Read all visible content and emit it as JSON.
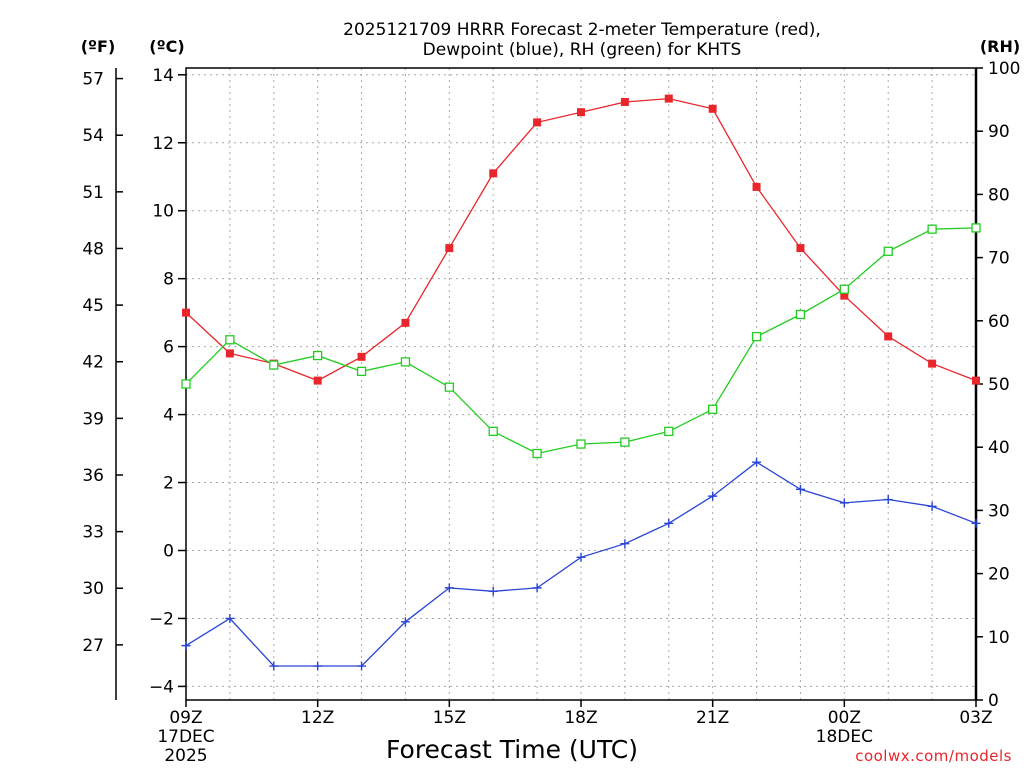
{
  "chart_data": {
    "type": "line",
    "title_line1": "2025121709 HRRR Forecast 2-meter Temperature (red),",
    "title_line2": "Dewpoint (blue), RH (green) for KHTS",
    "xlabel": "Forecast Time (UTC)",
    "credit": "coolwx.com/models",
    "units": {
      "fahrenheit": "(ºF)",
      "celsius": "(ºC)",
      "rh": "(RH)"
    },
    "x_hours": [
      0,
      1,
      2,
      3,
      4,
      5,
      6,
      7,
      8,
      9,
      10,
      11,
      12,
      13,
      14,
      15,
      16,
      17,
      18
    ],
    "x_ticks": [
      {
        "hour": 0,
        "label": "09Z",
        "sub1": "17DEC",
        "sub2": "2025"
      },
      {
        "hour": 3,
        "label": "12Z",
        "sub1": "",
        "sub2": ""
      },
      {
        "hour": 6,
        "label": "15Z",
        "sub1": "",
        "sub2": ""
      },
      {
        "hour": 9,
        "label": "18Z",
        "sub1": "",
        "sub2": ""
      },
      {
        "hour": 12,
        "label": "21Z",
        "sub1": "",
        "sub2": ""
      },
      {
        "hour": 15,
        "label": "00Z",
        "sub1": "18DEC",
        "sub2": ""
      },
      {
        "hour": 18,
        "label": "03Z",
        "sub1": "",
        "sub2": ""
      }
    ],
    "celsius_axis": {
      "min": -4.4,
      "max": 14.2,
      "ticks": [
        -4,
        -2,
        0,
        2,
        4,
        6,
        8,
        10,
        12,
        14
      ]
    },
    "fahrenheit_ticks": [
      27,
      30,
      33,
      36,
      39,
      42,
      45,
      48,
      51,
      54,
      57
    ],
    "rh_axis": {
      "min": 0,
      "max": 100,
      "ticks": [
        0,
        10,
        20,
        30,
        40,
        50,
        60,
        70,
        80,
        90,
        100
      ]
    },
    "series": [
      {
        "name": "Temperature",
        "unit": "C",
        "color": "#e8262b",
        "marker": "filled-square",
        "values": [
          7.0,
          5.8,
          5.5,
          5.0,
          5.7,
          6.7,
          8.9,
          11.1,
          12.6,
          12.9,
          13.2,
          13.3,
          13.0,
          10.7,
          8.9,
          7.5,
          6.3,
          5.5,
          5.0
        ]
      },
      {
        "name": "Dewpoint",
        "unit": "C",
        "color": "#2a44d6",
        "marker": "plus",
        "values": [
          -2.8,
          -2.0,
          -3.4,
          -3.4,
          -3.4,
          -2.1,
          -1.1,
          -1.2,
          -1.1,
          -0.2,
          0.2,
          0.8,
          1.6,
          2.6,
          1.8,
          1.4,
          1.5,
          1.3,
          0.8
        ]
      },
      {
        "name": "RH",
        "unit": "%",
        "color": "#22cc22",
        "marker": "open-square",
        "values": [
          50,
          57,
          53,
          54.5,
          52,
          53.5,
          49.5,
          42.5,
          39,
          40.5,
          40.8,
          42.5,
          46,
          57.5,
          61,
          65,
          71,
          74.5,
          74.7
        ]
      }
    ]
  }
}
